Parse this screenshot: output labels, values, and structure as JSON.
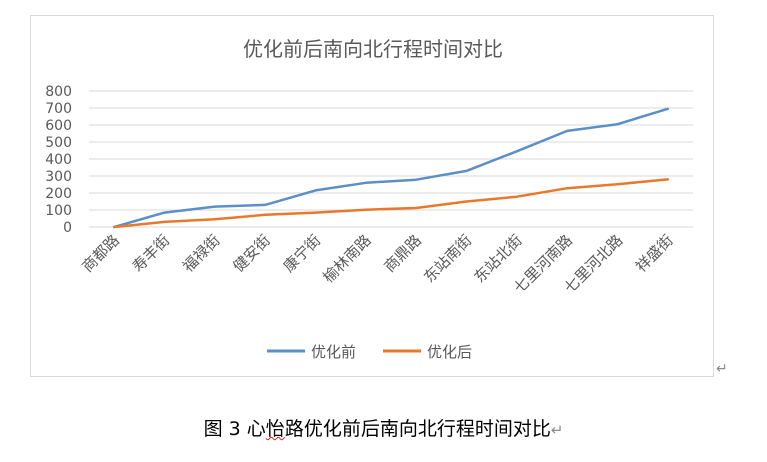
{
  "caption": {
    "figure_label": "图 3",
    "before_squiggle": "心",
    "squiggle": "怡",
    "after_squiggle": "路优化前后南向北行程时间对比",
    "return_mark": "↵"
  },
  "chart_side_mark": "↵",
  "colors": {
    "before": "#5b8fc7",
    "after": "#e8792c",
    "grid": "#d9d9d9",
    "text": "#595959"
  },
  "chart_data": {
    "type": "line",
    "title": "优化前后南向北行程时间对比",
    "xlabel": "",
    "ylabel": "",
    "ylim": [
      0,
      800
    ],
    "yticks": [
      0,
      100,
      200,
      300,
      400,
      500,
      600,
      700,
      800
    ],
    "grid": true,
    "legend_position": "bottom",
    "categories": [
      "商都路",
      "寿丰街",
      "福禄街",
      "健安街",
      "康宁街",
      "榆林南路",
      "商鼎路",
      "东站南街",
      "东站北街",
      "七里河南路",
      "七里河北路",
      "祥盛街"
    ],
    "series": [
      {
        "name": "优化前",
        "color": "#5b8fc7",
        "values": [
          0,
          85,
          120,
          130,
          215,
          260,
          278,
          330,
          445,
          565,
          605,
          695
        ]
      },
      {
        "name": "优化后",
        "color": "#e8792c",
        "values": [
          0,
          30,
          45,
          72,
          85,
          102,
          112,
          150,
          178,
          228,
          252,
          280
        ]
      }
    ]
  }
}
